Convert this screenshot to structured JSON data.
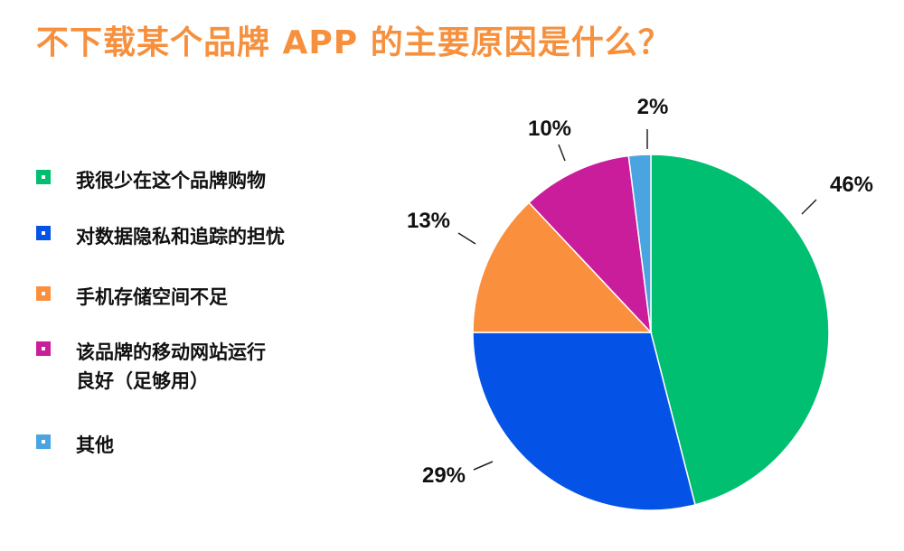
{
  "title": "不下载某个品牌 APP 的主要原因是什么？",
  "chart_data": {
    "type": "pie",
    "title": "不下载某个品牌 APP 的主要原因是什么？",
    "slices": [
      {
        "label": "我很少在这个品牌购物",
        "value": 46,
        "display": "46%",
        "color": "#00bf71"
      },
      {
        "label": "对数据隐私和追踪的担忧",
        "value": 29,
        "display": "29%",
        "color": "#0553e6"
      },
      {
        "label": "手机存储空间不足",
        "value": 13,
        "display": "13%",
        "color": "#fa8f3e"
      },
      {
        "label": "该品牌的移动网站运行\n良好（足够用）",
        "value": 10,
        "display": "10%",
        "color": "#c91d9b"
      },
      {
        "label": "其他",
        "value": 2,
        "display": "2%",
        "color": "#4aa4e0"
      }
    ],
    "legend_position": "left"
  }
}
